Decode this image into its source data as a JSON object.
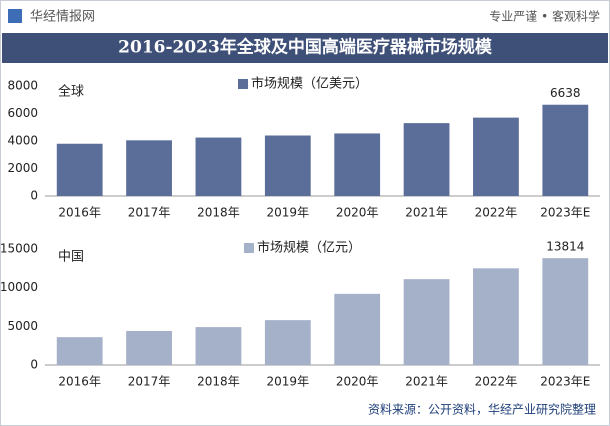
{
  "header": {
    "logo": "华经情报网",
    "slogan": "专业严谨 • 客观科学"
  },
  "title": "2016-2023年全球及中国高端医疗器械市场规模",
  "source": "资料来源：公开资料，华经产业研究院整理",
  "chart_data": [
    {
      "type": "bar",
      "annotation": "全球",
      "categories": [
        "2016年",
        "2017年",
        "2018年",
        "2019年",
        "2020年",
        "2021年",
        "2022年",
        "2023年E"
      ],
      "series": [
        {
          "name": "市场规模（亿美元）",
          "color": "#5b6e99",
          "values": [
            3800,
            4050,
            4250,
            4400,
            4550,
            5300,
            5700,
            6638
          ],
          "value_labels": [
            null,
            null,
            null,
            null,
            null,
            null,
            null,
            "6638"
          ]
        }
      ],
      "ylim": [
        0,
        8000
      ],
      "yticks": [
        0,
        2000,
        4000,
        6000,
        8000
      ]
    },
    {
      "type": "bar",
      "annotation": "中国",
      "categories": [
        "2016年",
        "2017年",
        "2018年",
        "2019年",
        "2020年",
        "2021年",
        "2022年",
        "2023年E"
      ],
      "series": [
        {
          "name": "市场规模（亿元）",
          "color": "#a5b0c9",
          "values": [
            3600,
            4400,
            4900,
            5800,
            9200,
            11100,
            12500,
            13814
          ],
          "value_labels": [
            null,
            null,
            null,
            null,
            null,
            null,
            null,
            "13814"
          ]
        }
      ],
      "ylim": [
        0,
        15000
      ],
      "yticks": [
        0,
        5000,
        10000,
        15000
      ]
    }
  ]
}
